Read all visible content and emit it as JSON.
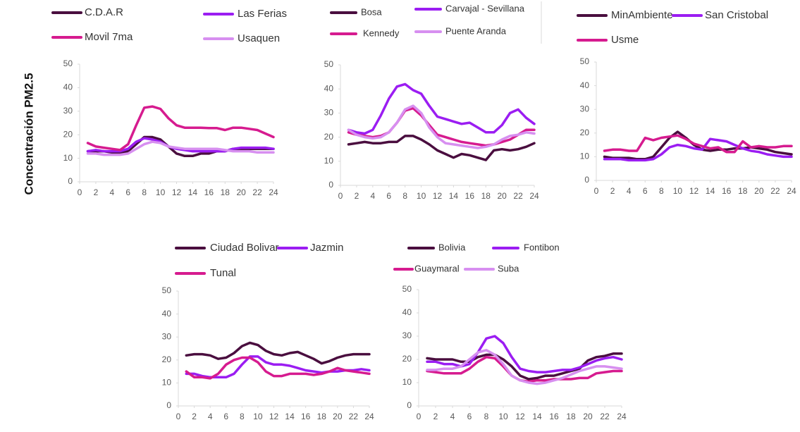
{
  "ylabel": "Concentración PM2.5",
  "chart_data": [
    {
      "type": "line",
      "x": [
        1,
        2,
        3,
        4,
        5,
        6,
        7,
        8,
        9,
        10,
        11,
        12,
        13,
        14,
        15,
        16,
        17,
        18,
        19,
        20,
        21,
        22,
        23,
        24
      ],
      "xlim": [
        0,
        24
      ],
      "xticks": [
        0,
        2,
        4,
        6,
        8,
        10,
        12,
        14,
        16,
        18,
        20,
        22,
        24
      ],
      "ylim": [
        0,
        50
      ],
      "yticks": [
        0,
        10,
        20,
        30,
        40,
        50
      ],
      "grid": false,
      "series": [
        {
          "name": "C.D.A.R",
          "color": "#4a0e3f",
          "values": [
            13,
            13,
            13,
            12.5,
            12,
            13,
            16,
            19,
            19,
            18,
            15,
            12,
            11,
            11,
            12,
            12,
            13,
            13,
            14,
            14,
            14,
            14,
            14,
            14
          ]
        },
        {
          "name": "Las Ferias",
          "color": "#9b1df2",
          "values": [
            13,
            13.5,
            13,
            13,
            13,
            14,
            17,
            18.5,
            18,
            17,
            15,
            14,
            13.5,
            13,
            13,
            13,
            13,
            13,
            14,
            14.5,
            14.5,
            14.5,
            14.5,
            14
          ]
        },
        {
          "name": "Movil 7ma",
          "color": "#d61b8f",
          "values": [
            16.5,
            15,
            14.5,
            14,
            13.5,
            16,
            24,
            31.5,
            32,
            31,
            27,
            24,
            23,
            23,
            23,
            22.8,
            22.8,
            22,
            23,
            23,
            22.5,
            22,
            20.5,
            19
          ]
        },
        {
          "name": "Usaquen",
          "color": "#d78ff0",
          "values": [
            12,
            12,
            11.5,
            11.5,
            11.5,
            12,
            14,
            16,
            17,
            16.5,
            15,
            14.5,
            14,
            14,
            14,
            14,
            14,
            13.5,
            13,
            13,
            13,
            12.5,
            12.5,
            12.5
          ]
        }
      ]
    },
    {
      "type": "line",
      "x": [
        1,
        2,
        3,
        4,
        5,
        6,
        7,
        8,
        9,
        10,
        11,
        12,
        13,
        14,
        15,
        16,
        17,
        18,
        19,
        20,
        21,
        22,
        23,
        24
      ],
      "xlim": [
        0,
        24
      ],
      "xticks": [
        0,
        2,
        4,
        6,
        8,
        10,
        12,
        14,
        16,
        18,
        20,
        22,
        24
      ],
      "ylim": [
        0,
        50
      ],
      "yticks": [
        0,
        10,
        20,
        30,
        40,
        50
      ],
      "grid": false,
      "series": [
        {
          "name": "Bosa",
          "color": "#4a0e3f",
          "values": [
            17,
            17.5,
            18,
            17.5,
            17.5,
            18,
            18,
            20.5,
            20.5,
            19,
            17,
            14.5,
            13,
            11.5,
            13,
            12.5,
            11.5,
            10.5,
            14.5,
            15,
            14.5,
            15,
            16,
            17.5
          ]
        },
        {
          "name": "Carvajal - Sevillana",
          "color": "#9b1df2",
          "values": [
            23,
            22,
            21.5,
            23,
            29,
            36,
            41,
            42,
            39.5,
            38,
            33,
            28.5,
            27.5,
            26.5,
            25.5,
            26,
            24,
            22,
            22,
            25,
            30,
            31.5,
            28,
            25.5
          ]
        },
        {
          "name": "Kennedy",
          "color": "#d61b8f",
          "values": [
            22,
            21,
            20.5,
            20,
            20.5,
            22,
            26,
            31,
            32,
            29,
            25,
            21,
            20,
            19,
            18,
            17.5,
            17,
            16.5,
            17,
            18,
            19,
            21,
            23,
            23
          ]
        },
        {
          "name": "Puente Aranda",
          "color": "#d78ff0",
          "values": [
            23,
            21,
            20,
            19.5,
            20,
            22,
            26,
            31.5,
            33,
            30,
            24,
            20,
            17.5,
            17,
            16.5,
            16,
            15.5,
            16,
            17,
            19,
            20.5,
            21,
            22,
            21.5
          ]
        }
      ]
    },
    {
      "type": "line",
      "x": [
        1,
        2,
        3,
        4,
        5,
        6,
        7,
        8,
        9,
        10,
        11,
        12,
        13,
        14,
        15,
        16,
        17,
        18,
        19,
        20,
        21,
        22,
        23,
        24
      ],
      "xlim": [
        0,
        24
      ],
      "xticks": [
        0,
        2,
        4,
        6,
        8,
        10,
        12,
        14,
        16,
        18,
        20,
        22,
        24
      ],
      "ylim": [
        0,
        50
      ],
      "yticks": [
        0,
        10,
        20,
        30,
        40,
        50
      ],
      "grid": false,
      "series": [
        {
          "name": "MinAmbiente",
          "color": "#4a0e3f",
          "values": [
            10,
            9.5,
            9.5,
            9.5,
            9,
            9,
            10,
            14,
            18,
            20.5,
            18,
            15,
            13,
            12.5,
            13,
            13,
            13.5,
            13.5,
            14,
            13.5,
            13,
            12,
            11.5,
            11
          ]
        },
        {
          "name": "San Cristobal",
          "color": "#9b1df2",
          "values": [
            9,
            9,
            9,
            8.5,
            8.5,
            8.5,
            9,
            11,
            14,
            15,
            14.5,
            13.5,
            13,
            17.5,
            17,
            16.5,
            15,
            13.5,
            12.5,
            12,
            11,
            10.5,
            10,
            10
          ]
        },
        {
          "name": "Usme",
          "color": "#d61b8f",
          "values": [
            12.5,
            13,
            13,
            12.5,
            12.5,
            18,
            17,
            18,
            18.5,
            19,
            17.5,
            15.5,
            14.5,
            13.5,
            14,
            12,
            12,
            16.5,
            14,
            14.5,
            14,
            14,
            14.5,
            14.5
          ]
        }
      ]
    },
    {
      "type": "line",
      "x": [
        1,
        2,
        3,
        4,
        5,
        6,
        7,
        8,
        9,
        10,
        11,
        12,
        13,
        14,
        15,
        16,
        17,
        18,
        19,
        20,
        21,
        22,
        23,
        24
      ],
      "xlim": [
        0,
        24
      ],
      "xticks": [
        0,
        2,
        4,
        6,
        8,
        10,
        12,
        14,
        16,
        18,
        20,
        22,
        24
      ],
      "ylim": [
        0,
        50
      ],
      "yticks": [
        0,
        10,
        20,
        30,
        40,
        50
      ],
      "grid": false,
      "series": [
        {
          "name": "Ciudad Bolivar",
          "color": "#4a0e3f",
          "values": [
            22,
            22.5,
            22.5,
            22,
            20.5,
            21,
            23,
            26,
            27.5,
            26.5,
            24,
            22.5,
            22,
            23,
            23.5,
            22,
            20.5,
            18.5,
            19.5,
            21,
            22,
            22.5,
            22.5,
            22.5
          ]
        },
        {
          "name": "Jazmin",
          "color": "#9b1df2",
          "values": [
            14,
            14,
            13,
            12.5,
            12.5,
            12.5,
            14,
            18,
            21.5,
            21.5,
            19,
            18,
            18,
            17.5,
            16.5,
            15.5,
            15,
            14.5,
            15,
            15,
            15.5,
            15.5,
            16,
            15.5
          ]
        },
        {
          "name": "Tunal",
          "color": "#d61b8f",
          "values": [
            15,
            12.5,
            12.5,
            12,
            14,
            18,
            20,
            21,
            21,
            19,
            15,
            13,
            13,
            14,
            14,
            14,
            13.5,
            14,
            15,
            16.5,
            15.5,
            15,
            14.5,
            14
          ]
        }
      ]
    },
    {
      "type": "line",
      "x": [
        1,
        2,
        3,
        4,
        5,
        6,
        7,
        8,
        9,
        10,
        11,
        12,
        13,
        14,
        15,
        16,
        17,
        18,
        19,
        20,
        21,
        22,
        23,
        24
      ],
      "xlim": [
        0,
        24
      ],
      "xticks": [
        0,
        2,
        4,
        6,
        8,
        10,
        12,
        14,
        16,
        18,
        20,
        22,
        24
      ],
      "ylim": [
        0,
        50
      ],
      "yticks": [
        0,
        10,
        20,
        30,
        40,
        50
      ],
      "grid": false,
      "series": [
        {
          "name": "Bolivia",
          "color": "#4a0e3f",
          "values": [
            20.5,
            20,
            20,
            20,
            19,
            19,
            21,
            22,
            22,
            20,
            17,
            13,
            11.5,
            12,
            13,
            13,
            14,
            15,
            16,
            19.5,
            21,
            21.5,
            22.5,
            22.5
          ]
        },
        {
          "name": "Fontibon",
          "color": "#9b1df2",
          "values": [
            19,
            19,
            18,
            18,
            17,
            18,
            23,
            29,
            30,
            27,
            21,
            16,
            15,
            14.5,
            14.5,
            15,
            15.5,
            15.5,
            16.5,
            18,
            19.5,
            20.5,
            21,
            20
          ]
        },
        {
          "name": "Guaymaral",
          "color": "#d61b8f",
          "values": [
            15,
            14.5,
            14,
            14,
            14,
            16,
            19,
            21,
            20.5,
            17,
            13,
            11,
            10.5,
            11,
            11,
            11.5,
            11.5,
            11.5,
            12,
            12,
            14,
            14.5,
            15,
            15
          ]
        },
        {
          "name": "Suba",
          "color": "#d78ff0",
          "values": [
            15.5,
            15.5,
            16,
            16,
            17,
            20,
            23,
            24,
            22,
            18,
            13,
            11,
            10,
            9.5,
            10,
            11,
            12,
            13.5,
            15,
            16,
            17,
            17,
            16.5,
            16
          ]
        }
      ]
    }
  ]
}
